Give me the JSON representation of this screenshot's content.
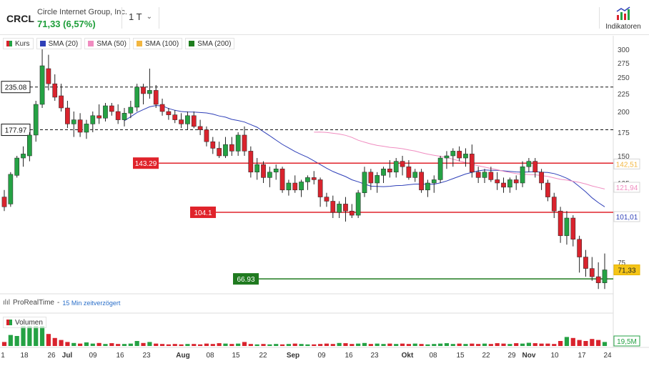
{
  "header": {
    "ticker": "CRCL",
    "company": "Circle Internet Group, Inc.",
    "price_change": "71,33 (6,57%)",
    "period": "1 T",
    "indicators_label": "Indikatoren"
  },
  "legend": {
    "items": [
      {
        "label": "Kurs",
        "color": "split"
      },
      {
        "label": "SMA (20)",
        "color": "#2e3fb8"
      },
      {
        "label": "SMA (50)",
        "color": "#f08cc0"
      },
      {
        "label": "SMA (100)",
        "color": "#f2b640"
      },
      {
        "label": "SMA (200)",
        "color": "#1e7d1e"
      }
    ]
  },
  "watermark": {
    "brand": "ProRealTime",
    "separator": "-",
    "delay": "15 Min zeitverzögert"
  },
  "volume": {
    "label": "Volumen",
    "last_label": "19,5M"
  },
  "colors": {
    "up": "#25a244",
    "down": "#d9232d",
    "sma20": "#2e3fb8",
    "sma50": "#f08cc0",
    "sma100": "#f2b640"
  },
  "chart_data": {
    "type": "candlestick",
    "y_ticks": [
      300,
      275,
      250,
      225,
      200,
      175,
      150,
      125,
      75
    ],
    "y_axis_tags": [
      {
        "label": "142,51",
        "value": 142.51,
        "color": "#f2b640"
      },
      {
        "label": "121,94",
        "value": 121.94,
        "color": "#f08cc0"
      },
      {
        "label": "101,01",
        "value": 101.01,
        "color": "#2e3fb8"
      },
      {
        "label": "71,33",
        "value": 71.33,
        "color": "#e8b400"
      }
    ],
    "x_ticks": [
      "1",
      "18",
      "26",
      "Jul",
      "09",
      "16",
      "23",
      "Aug",
      "08",
      "15",
      "22",
      "Sep",
      "09",
      "16",
      "23",
      "Okt",
      "08",
      "15",
      "22",
      "29",
      "Nov",
      "10",
      "17",
      "24"
    ],
    "levels": [
      {
        "label": "235.08",
        "value": 235.08,
        "style": "dashed",
        "color": "#111111"
      },
      {
        "label": "177.97",
        "value": 177.97,
        "style": "dashed",
        "color": "#111111"
      },
      {
        "label": "143.29",
        "value": 143.29,
        "style": "solid",
        "color": "#e0232b"
      },
      {
        "label": "104.1",
        "value": 104.1,
        "style": "solid",
        "color": "#e0232b"
      },
      {
        "label": "66.93",
        "value": 66.93,
        "style": "solid",
        "color": "#1f7a1f"
      }
    ],
    "candles": [
      [
        115,
        120,
        105,
        108
      ],
      [
        110,
        135,
        108,
        133
      ],
      [
        132,
        150,
        130,
        148
      ],
      [
        148,
        160,
        140,
        152
      ],
      [
        150,
        175,
        145,
        172
      ],
      [
        172,
        215,
        165,
        210
      ],
      [
        210,
        300,
        205,
        270
      ],
      [
        265,
        290,
        230,
        240
      ],
      [
        240,
        255,
        215,
        220
      ],
      [
        222,
        240,
        200,
        205
      ],
      [
        205,
        215,
        180,
        185
      ],
      [
        185,
        200,
        170,
        190
      ],
      [
        190,
        198,
        170,
        175
      ],
      [
        175,
        190,
        168,
        185
      ],
      [
        185,
        200,
        175,
        195
      ],
      [
        195,
        210,
        185,
        192
      ],
      [
        192,
        212,
        188,
        208
      ],
      [
        208,
        212,
        195,
        200
      ],
      [
        200,
        210,
        185,
        190
      ],
      [
        190,
        205,
        182,
        198
      ],
      [
        198,
        215,
        192,
        206
      ],
      [
        206,
        240,
        200,
        235
      ],
      [
        235,
        240,
        210,
        225
      ],
      [
        225,
        265,
        218,
        230
      ],
      [
        230,
        238,
        205,
        210
      ],
      [
        210,
        218,
        195,
        200
      ],
      [
        200,
        205,
        190,
        196
      ],
      [
        196,
        202,
        186,
        190
      ],
      [
        190,
        198,
        180,
        185
      ],
      [
        185,
        200,
        178,
        195
      ],
      [
        195,
        200,
        180,
        182
      ],
      [
        182,
        190,
        172,
        178
      ],
      [
        178,
        182,
        160,
        165
      ],
      [
        165,
        170,
        152,
        158
      ],
      [
        158,
        165,
        148,
        150
      ],
      [
        150,
        170,
        148,
        162
      ],
      [
        162,
        170,
        150,
        155
      ],
      [
        155,
        175,
        150,
        172
      ],
      [
        172,
        182,
        150,
        155
      ],
      [
        155,
        160,
        130,
        135
      ],
      [
        135,
        148,
        128,
        142
      ],
      [
        142,
        145,
        125,
        130
      ],
      [
        130,
        140,
        122,
        135
      ],
      [
        135,
        142,
        128,
        138
      ],
      [
        138,
        140,
        118,
        120
      ],
      [
        120,
        128,
        116,
        125
      ],
      [
        125,
        132,
        118,
        120
      ],
      [
        120,
        128,
        115,
        126
      ],
      [
        126,
        132,
        120,
        130
      ],
      [
        130,
        136,
        124,
        128
      ],
      [
        128,
        130,
        108,
        115
      ],
      [
        115,
        118,
        108,
        112
      ],
      [
        112,
        116,
        100,
        104
      ],
      [
        104,
        112,
        100,
        110
      ],
      [
        110,
        115,
        98,
        105
      ],
      [
        105,
        110,
        100,
        102
      ],
      [
        102,
        120,
        100,
        118
      ],
      [
        118,
        140,
        115,
        135
      ],
      [
        135,
        138,
        120,
        125
      ],
      [
        125,
        135,
        118,
        132
      ],
      [
        132,
        140,
        125,
        138
      ],
      [
        138,
        146,
        130,
        135
      ],
      [
        135,
        148,
        130,
        145
      ],
      [
        145,
        150,
        132,
        140
      ],
      [
        140,
        146,
        128,
        130
      ],
      [
        130,
        138,
        126,
        135
      ],
      [
        135,
        138,
        118,
        120
      ],
      [
        120,
        128,
        115,
        125
      ],
      [
        125,
        132,
        118,
        128
      ],
      [
        128,
        150,
        125,
        148
      ],
      [
        148,
        155,
        138,
        150
      ],
      [
        150,
        158,
        140,
        155
      ],
      [
        155,
        160,
        145,
        148
      ],
      [
        148,
        158,
        140,
        152
      ],
      [
        152,
        162,
        130,
        135
      ],
      [
        135,
        140,
        125,
        130
      ],
      [
        130,
        138,
        125,
        135
      ],
      [
        135,
        140,
        126,
        128
      ],
      [
        128,
        135,
        120,
        125
      ],
      [
        125,
        130,
        118,
        122
      ],
      [
        122,
        130,
        118,
        128
      ],
      [
        128,
        132,
        120,
        125
      ],
      [
        125,
        145,
        122,
        140
      ],
      [
        140,
        148,
        135,
        145
      ],
      [
        145,
        148,
        130,
        135
      ],
      [
        135,
        138,
        120,
        125
      ],
      [
        125,
        128,
        112,
        115
      ],
      [
        115,
        118,
        100,
        105
      ],
      [
        105,
        108,
        86,
        90
      ],
      [
        90,
        105,
        85,
        100
      ],
      [
        100,
        102,
        84,
        88
      ],
      [
        88,
        90,
        70,
        78
      ],
      [
        78,
        82,
        68,
        72
      ],
      [
        72,
        78,
        66,
        68
      ],
      [
        68,
        75,
        62,
        65
      ],
      [
        65,
        80,
        62,
        71.33
      ]
    ],
    "volume": [
      0.2,
      0.55,
      0.5,
      0.95,
      0.95,
      0.95,
      0.95,
      0.6,
      0.4,
      0.3,
      0.2,
      0.15,
      0.12,
      0.18,
      0.12,
      0.15,
      0.1,
      0.14,
      0.1,
      0.1,
      0.12,
      0.25,
      0.15,
      0.2,
      0.12,
      0.1,
      0.08,
      0.1,
      0.08,
      0.1,
      0.1,
      0.08,
      0.12,
      0.1,
      0.14,
      0.12,
      0.1,
      0.12,
      0.2,
      0.1,
      0.08,
      0.1,
      0.08,
      0.1,
      0.08,
      0.1,
      0.12,
      0.1,
      0.08,
      0.08,
      0.1,
      0.12,
      0.1,
      0.15,
      0.14,
      0.1,
      0.12,
      0.15,
      0.1,
      0.12,
      0.1,
      0.12,
      0.1,
      0.12,
      0.1,
      0.12,
      0.1,
      0.08,
      0.1,
      0.12,
      0.14,
      0.1,
      0.12,
      0.1,
      0.12,
      0.1,
      0.12,
      0.1,
      0.14,
      0.12,
      0.1,
      0.14,
      0.12,
      0.16,
      0.14,
      0.12,
      0.12,
      0.1,
      0.25,
      0.45,
      0.4,
      0.3,
      0.25,
      0.35,
      0.3,
      0.2
    ]
  }
}
